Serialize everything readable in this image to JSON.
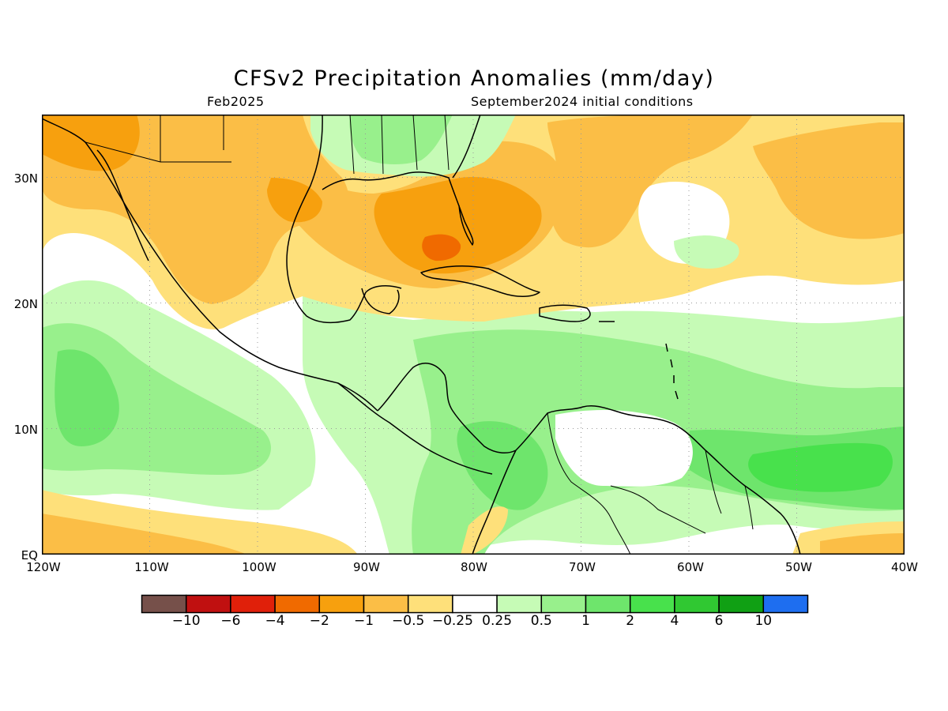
{
  "title": "CFSv2 Precipitation Anomalies (mm/day)",
  "subtitle_left": "Feb2025",
  "subtitle_right": "September2024 initial conditions",
  "map": {
    "lon_range": [
      -120,
      -40
    ],
    "lat_range": [
      0,
      35
    ],
    "gridlines": "dotted",
    "lat_labels": [
      "EQ",
      "10N",
      "20N",
      "30N"
    ],
    "lon_labels": [
      "120W",
      "110W",
      "100W",
      "90W",
      "80W",
      "70W",
      "60W",
      "50W",
      "40W"
    ]
  },
  "colorbar": {
    "colors": [
      "#76504a",
      "#c01010",
      "#e0200a",
      "#f06a00",
      "#f7a00e",
      "#fbbe46",
      "#fee07a",
      "#ffffff",
      "#c6fbb6",
      "#98f08c",
      "#6ee56c",
      "#48e14c",
      "#30c832",
      "#10a014",
      "#1e6ef0"
    ],
    "labels": [
      "-10",
      "-6",
      "-4",
      "-2",
      "-1",
      "-0.5",
      "-0.25",
      "0.25",
      "0.5",
      "1",
      "2",
      "4",
      "6",
      "10"
    ]
  },
  "chart_data": {
    "type": "heatmap",
    "title": "CFSv2 Precipitation Anomalies (mm/day)",
    "valid_month": "Feb2025",
    "initial_conditions": "September2024 initial conditions",
    "units": "mm/day",
    "contour_levels": [
      -10,
      -6,
      -4,
      -2,
      -1,
      -0.5,
      -0.25,
      0.25,
      0.5,
      1,
      2,
      4,
      6,
      10
    ],
    "x_range": [
      -120,
      -40
    ],
    "y_range": [
      0,
      35
    ],
    "regions": [
      {
        "area": "Southern Florida / Straits of Florida",
        "approx_lon": -83,
        "approx_lat": 24.5,
        "anomaly_mm_day": -2.5
      },
      {
        "area": "Gulf of Mexico north and east",
        "approx_lon": -85,
        "approx_lat": 26,
        "anomaly_mm_day": -1.5
      },
      {
        "area": "Northwest Mexico / US Southwest",
        "approx_lon": -115,
        "approx_lat": 32,
        "anomaly_mm_day": -1.2
      },
      {
        "area": "Western Mexico coast",
        "approx_lon": -105,
        "approx_lat": 21,
        "anomaly_mm_day": -1
      },
      {
        "area": "Western Atlantic off Southeast US",
        "approx_lon": -70,
        "approx_lat": 31,
        "anomaly_mm_day": -0.75
      },
      {
        "area": "Central Atlantic north of 25N",
        "approx_lon": -50,
        "approx_lat": 27,
        "anomaly_mm_day": -0.5
      },
      {
        "area": "US Gulf Coast states",
        "approx_lon": -87,
        "approx_lat": 33,
        "anomaly_mm_day": 0.75
      },
      {
        "area": "Caribbean Sea",
        "approx_lon": -72,
        "approx_lat": 14,
        "anomaly_mm_day": 0.75
      },
      {
        "area": "Panama / Colombia",
        "approx_lon": -77,
        "approx_lat": 7,
        "anomaly_mm_day": 1.5
      },
      {
        "area": "Tropical Atlantic off Guianas",
        "approx_lon": -48,
        "approx_lat": 7,
        "anomaly_mm_day": 2.5
      },
      {
        "area": "Eastern Pacific 10-15N",
        "approx_lon": -115,
        "approx_lat": 12,
        "anomaly_mm_day": 0.75
      },
      {
        "area": "Eastern Pacific near equator",
        "approx_lon": -115,
        "approx_lat": 2,
        "anomaly_mm_day": -0.75
      },
      {
        "area": "Equatorial Atlantic 45W",
        "approx_lon": -44,
        "approx_lat": 1,
        "anomaly_mm_day": -1
      }
    ]
  }
}
